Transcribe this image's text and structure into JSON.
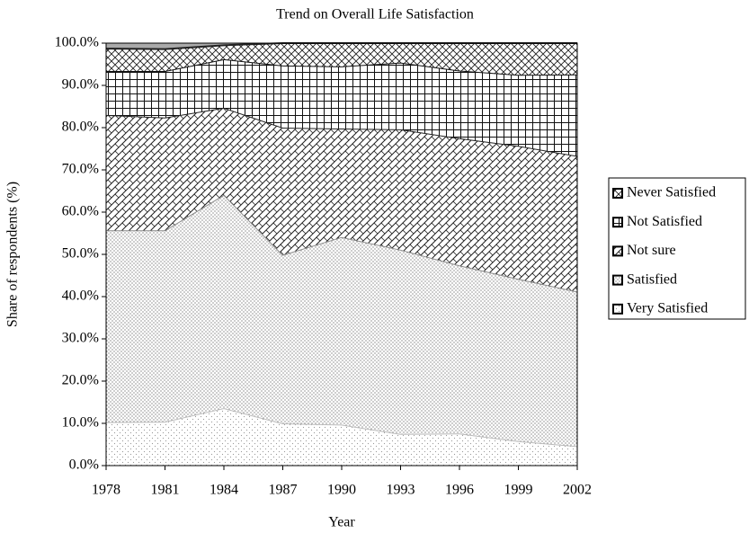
{
  "chart_data": {
    "type": "stacked-area",
    "title": "Trend on Overall Life Satisfaction",
    "x_label": "Year",
    "y_label": "Share of respondents (%)",
    "x": [
      1978,
      1981,
      1984,
      1987,
      1990,
      1993,
      1996,
      1999,
      2002
    ],
    "series": [
      {
        "name": "Very Satisfied",
        "color": "#bbbbbb",
        "pattern": "sparse-dots",
        "values": [
          10.3,
          10.4,
          13.6,
          10.0,
          9.7,
          7.5,
          7.6,
          5.8,
          4.6
        ]
      },
      {
        "name": "Satisfied",
        "color": "#888888",
        "pattern": "dense-dots",
        "values": [
          45.4,
          45.3,
          50.5,
          39.9,
          44.4,
          43.6,
          39.8,
          38.4,
          36.6
        ]
      },
      {
        "name": "Not sure",
        "color": "#222222",
        "pattern": "zigzag",
        "values": [
          27.3,
          26.7,
          20.6,
          30.1,
          25.7,
          28.5,
          30.1,
          31.5,
          32.1
        ]
      },
      {
        "name": "Not Satisfied",
        "color": "#111111",
        "pattern": "grid",
        "values": [
          10.4,
          11.0,
          11.5,
          14.7,
          14.7,
          15.8,
          16.0,
          16.8,
          19.3
        ]
      },
      {
        "name": "Never Satisfied",
        "color": "#222222",
        "pattern": "crosshatch",
        "values": [
          5.3,
          5.2,
          3.3,
          5.3,
          5.5,
          4.6,
          6.5,
          7.5,
          7.4
        ]
      }
    ],
    "xlim": [
      1978,
      2002
    ],
    "xticks": [
      1978,
      1981,
      1984,
      1987,
      1990,
      1993,
      1996,
      1999,
      2002
    ],
    "ylim": [
      0,
      100
    ],
    "yticks": [
      {
        "value": 0,
        "label": "0.0%"
      },
      {
        "value": 10,
        "label": "10.0%"
      },
      {
        "value": 20,
        "label": "20.0%"
      },
      {
        "value": 30,
        "label": "30.0%"
      },
      {
        "value": 40,
        "label": "40.0%"
      },
      {
        "value": 50,
        "label": "50.0%"
      },
      {
        "value": 60,
        "label": "60.0%"
      },
      {
        "value": 70,
        "label": "70.0%"
      },
      {
        "value": 80,
        "label": "80.0%"
      },
      {
        "value": 90,
        "label": "90.0%"
      },
      {
        "value": 100,
        "label": "100.0%"
      }
    ],
    "legend": "right"
  }
}
